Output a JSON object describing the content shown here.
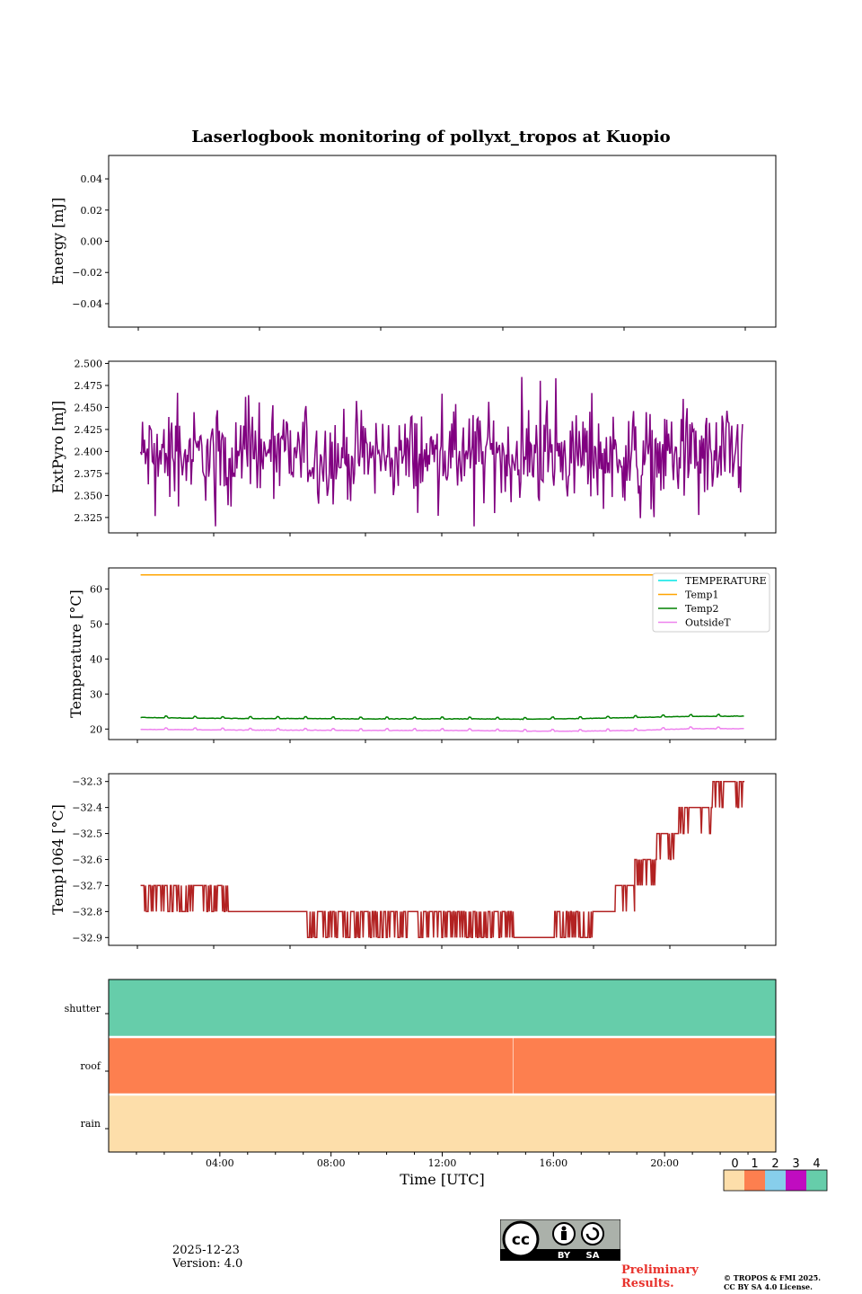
{
  "title": "Laserlogbook monitoring of pollyxt_tropos at Kuopio",
  "footer": {
    "date": "2025-12-23",
    "version": "Version: 4.0",
    "preliminary_line1": "Preliminary",
    "preliminary_line2": "Results.",
    "copyright_line1": "© TROPOS & FMI 2025.",
    "copyright_line2": "CC BY SA 4.0 License.",
    "license_badge": {
      "by": "BY",
      "sa": "SA",
      "cc": "cc"
    }
  },
  "colors": {
    "extpyro": "#800080",
    "temperature": "#00e5e5",
    "temp1": "#ffa500",
    "temp2": "#008000",
    "outsideT": "#ee82ee",
    "temp1064": "#b22222",
    "status": [
      "#fddeaa",
      "#fd7f4f",
      "#87ceeb",
      "#c00cc0",
      "#66cdaa"
    ]
  },
  "chart_data": [
    {
      "type": "line",
      "ylabel": "Energy [mJ]",
      "ylim": [
        -0.055,
        0.055
      ],
      "yticks": [
        0.04,
        0.02,
        0.0,
        -0.02,
        -0.04
      ],
      "ytick_labels": [
        "0.04",
        "0.02",
        "0.00",
        "−0.02",
        "−0.04"
      ],
      "series": []
    },
    {
      "type": "line",
      "ylabel": "ExtPyro [mJ]",
      "ylim": [
        2.3075,
        2.5025
      ],
      "yticks": [
        2.5,
        2.475,
        2.45,
        2.425,
        2.4,
        2.375,
        2.35,
        2.325
      ],
      "ytick_labels": [
        "2.500",
        "2.475",
        "2.450",
        "2.425",
        "2.400",
        "2.375",
        "2.350",
        "2.325"
      ],
      "xlim_hours": [
        0.03,
        24.0
      ],
      "series": [
        {
          "name": "ExtPyro",
          "x_range_hours": [
            1.1,
            22.9
          ],
          "mean": 2.395,
          "min": 2.315,
          "max": 2.495,
          "points": 620
        }
      ]
    },
    {
      "type": "line",
      "ylabel": "Temperature [°C]",
      "ylim": [
        17.0,
        66.0
      ],
      "yticks": [
        60,
        50,
        40,
        30,
        20
      ],
      "ytick_labels": [
        "60",
        "50",
        "40",
        "30",
        "20"
      ],
      "legend": [
        "TEMPERATURE",
        "Temp1",
        "Temp2",
        "OutsideT"
      ],
      "legend_loc": "upper right",
      "series": [
        {
          "name": "TEMPERATURE",
          "x": [],
          "y": []
        },
        {
          "name": "Temp1",
          "x": [
            1.1,
            23.0
          ],
          "y": [
            64,
            64
          ]
        },
        {
          "name": "Temp2",
          "x": [
            1.1,
            3,
            5,
            7,
            9,
            11,
            13,
            15,
            17,
            19,
            21,
            23.0
          ],
          "y": [
            23.3,
            23.1,
            23.0,
            23.0,
            22.9,
            22.9,
            22.9,
            22.8,
            23.0,
            23.3,
            23.6,
            23.7
          ]
        },
        {
          "name": "OutsideT",
          "x": [
            1.1,
            3,
            5,
            7,
            9,
            11,
            13,
            15,
            17,
            19,
            21,
            23.0
          ],
          "y": [
            19.9,
            19.8,
            19.7,
            19.7,
            19.6,
            19.6,
            19.6,
            19.4,
            19.4,
            19.6,
            20.1,
            20.1
          ]
        }
      ]
    },
    {
      "type": "line",
      "ylabel": "Temp1064 [°C]",
      "ylim": [
        -32.93,
        -32.27
      ],
      "yticks": [
        -32.3,
        -32.4,
        -32.5,
        -32.6,
        -32.7,
        -32.8,
        -32.9
      ],
      "ytick_labels": [
        "−32.3",
        "−32.4",
        "−32.5",
        "−32.6",
        "−32.7",
        "−32.8",
        "−32.9"
      ],
      "series": [
        {
          "name": "Temp1064",
          "segments": [
            {
              "from": 1.1,
              "to": 4.3,
              "base": -32.7,
              "alt": -32.8,
              "note": "oscillating"
            },
            {
              "from": 4.3,
              "to": 7.0,
              "base": -32.8
            },
            {
              "from": 7.0,
              "to": 14.7,
              "base": -32.8,
              "alt": -32.9,
              "note": "oscillating"
            },
            {
              "from": 14.7,
              "to": 16.1,
              "base": -32.9
            },
            {
              "from": 16.1,
              "to": 17.5,
              "base": -32.9,
              "alt": -32.8,
              "note": "oscillating"
            },
            {
              "from": 17.5,
              "to": 18.3,
              "base": -32.8
            },
            {
              "from": 18.3,
              "to": 19.0,
              "base": -32.7
            },
            {
              "from": 19.0,
              "to": 19.8,
              "base": -32.6
            },
            {
              "from": 19.8,
              "to": 20.6,
              "base": -32.5
            },
            {
              "from": 20.6,
              "to": 21.8,
              "base": -32.4
            },
            {
              "from": 21.8,
              "to": 23.0,
              "base": -32.3
            }
          ]
        }
      ]
    },
    {
      "type": "heatmap",
      "xlabel": "Time [UTC]",
      "xticks_hours": [
        4,
        8,
        12,
        16,
        20
      ],
      "xtick_labels": [
        "04:00",
        "08:00",
        "12:00",
        "16:00",
        "20:00"
      ],
      "xlim_hours": [
        0.0,
        24.0
      ],
      "rows": [
        "shutter",
        "roof",
        "rain"
      ],
      "row_values": {
        "shutter": 4,
        "roof": 1,
        "rain": 0
      },
      "roof_break_hour": 14.55,
      "colorbar_ticks": [
        "0",
        "1",
        "2",
        "3",
        "4"
      ]
    }
  ]
}
